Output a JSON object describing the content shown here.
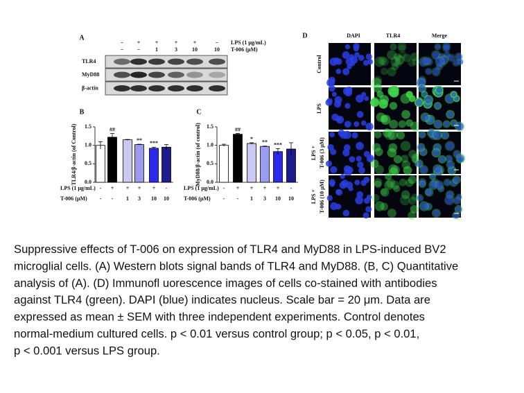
{
  "panel_labels": [
    "A",
    "B",
    "C",
    "D"
  ],
  "blot": {
    "conditions": [
      {
        "label": "LPS (1 μg/mL)",
        "values": [
          "−",
          "+",
          "+",
          "+",
          "+",
          "−"
        ]
      },
      {
        "label": "T-006 (μM)",
        "values": [
          "−",
          "−",
          "1",
          "3",
          "10",
          "10"
        ]
      }
    ],
    "rows": [
      "TLR4",
      "MyD88",
      "β-actin"
    ]
  },
  "chart_data": [
    {
      "type": "bar",
      "ylabel": "TLR4/β-actin (of Control)",
      "ylim": [
        0,
        1.5
      ],
      "yticks": [
        {
          "value": 0,
          "label": "0.0"
        },
        {
          "value": 0.5,
          "label": "0.5"
        },
        {
          "value": 1,
          "label": "1.0"
        },
        {
          "value": 1.5,
          "label": "1.5"
        }
      ],
      "values": [
        1.0,
        1.22,
        1.15,
        1.02,
        0.92,
        0.95
      ],
      "errors": [
        0.1,
        0.1,
        0.01,
        0.01,
        0.03,
        0.07
      ],
      "annotations": [
        null,
        "##",
        null,
        "**",
        "***",
        null
      ],
      "colors": [
        "#ffffff",
        "#000000",
        "#c9c9f2",
        "#9b9bf0",
        "#2a2ae8",
        "#1c1c8c"
      ],
      "conditions": [
        {
          "label": "LPS (1 μg/mL)",
          "values": [
            "-",
            "+",
            "+",
            "+",
            "+",
            "-"
          ]
        },
        {
          "label": "T-006 (μM)",
          "values": [
            "-",
            "-",
            "1",
            "3",
            "10",
            "10"
          ]
        }
      ]
    },
    {
      "type": "bar",
      "ylabel": "MyD88/β-actin (of control)",
      "ylim": [
        0,
        1.5
      ],
      "yticks": [
        {
          "value": 0,
          "label": "0.0"
        },
        {
          "value": 0.5,
          "label": "0.5"
        },
        {
          "value": 1,
          "label": "1.0"
        },
        {
          "value": 1.5,
          "label": "1.5"
        }
      ],
      "values": [
        1.0,
        1.3,
        1.05,
        0.97,
        0.83,
        0.9
      ],
      "errors": [
        0.03,
        0.02,
        0.02,
        0.01,
        0.08,
        0.17
      ],
      "annotations": [
        null,
        "##",
        "*",
        "**",
        "***",
        null
      ],
      "colors": [
        "#ffffff",
        "#000000",
        "#c9c9f2",
        "#9b9bf0",
        "#2a2ae8",
        "#1c1c8c"
      ],
      "conditions": [
        {
          "label": "LPS (1 μg/mL)",
          "values": [
            "-",
            "+",
            "+",
            "+",
            "+",
            "-"
          ]
        },
        {
          "label": "T-006 (μM)",
          "values": [
            "-",
            "-",
            "1",
            "3",
            "10",
            "10"
          ]
        }
      ]
    }
  ],
  "images": {
    "columns": [
      "DAPI",
      "TLR4",
      "Merge"
    ],
    "rows": [
      [
        "Control"
      ],
      [
        "LPS"
      ],
      [
        "LPS +",
        "T-006 (3 μM)"
      ],
      [
        "LPS +",
        "T-006 (10 μM)"
      ]
    ]
  },
  "caption": [
    "Suppressive effects of T-006 on expression of TLR4 and MyD88 in LPS-induced BV2",
    "microglial cells. (A) Western blots signal bands of TLR4 and MyD88. (B, C) Quantitative",
    "analysis of (A). (D) Immunofl uorescence images of cells co-stained with antibodies",
    "against TLR4 (green). DAPI (blue) indicates nucleus. Scale bar = 20 μm. Data are",
    "expressed as mean ± SEM with three independent experiments. Control denotes",
    "normal-medium cultured cells. p < 0.01 versus control group; p < 0.05, p < 0.01,",
    "p < 0.001 versus LPS group."
  ]
}
